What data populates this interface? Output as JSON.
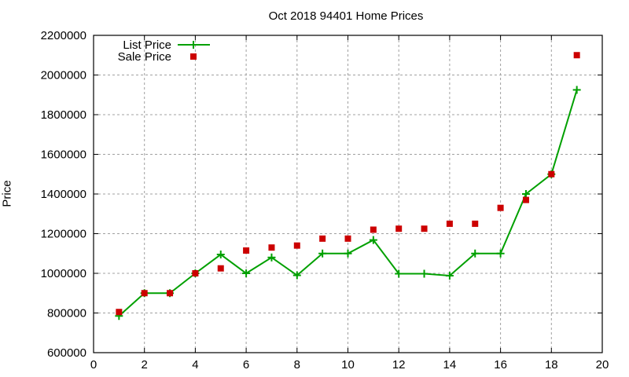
{
  "chart_data": {
    "type": "line",
    "title": "Oct 2018 94401 Home Prices",
    "xlabel": "",
    "ylabel": "Price",
    "xlim": [
      0,
      20
    ],
    "ylim": [
      600000,
      2200000
    ],
    "x_ticks": [
      0,
      2,
      4,
      6,
      8,
      10,
      12,
      14,
      16,
      18,
      20
    ],
    "y_ticks": [
      600000,
      800000,
      1000000,
      1200000,
      1400000,
      1600000,
      1800000,
      2000000,
      2200000
    ],
    "grid": true,
    "legend_position": "top-left",
    "x": [
      1,
      2,
      3,
      4,
      5,
      6,
      7,
      8,
      9,
      10,
      11,
      12,
      13,
      14,
      15,
      16,
      17,
      18,
      19
    ],
    "series": [
      {
        "name": "List Price",
        "style": "linespoints",
        "marker": "plus",
        "color": "#00a000",
        "values": [
          785000,
          900000,
          900000,
          1000000,
          1095000,
          1000000,
          1080000,
          990000,
          1100000,
          1100000,
          1168000,
          998000,
          998000,
          988000,
          1100000,
          1100000,
          1400000,
          1500000,
          1925000
        ]
      },
      {
        "name": "Sale Price",
        "style": "points",
        "marker": "square",
        "color": "#cc0000",
        "values": [
          805000,
          900000,
          900000,
          1000000,
          1025000,
          1115000,
          1130000,
          1140000,
          1175000,
          1175000,
          1220000,
          1225000,
          1225000,
          1250000,
          1250000,
          1330000,
          1370000,
          1500000,
          2100000
        ]
      }
    ]
  }
}
